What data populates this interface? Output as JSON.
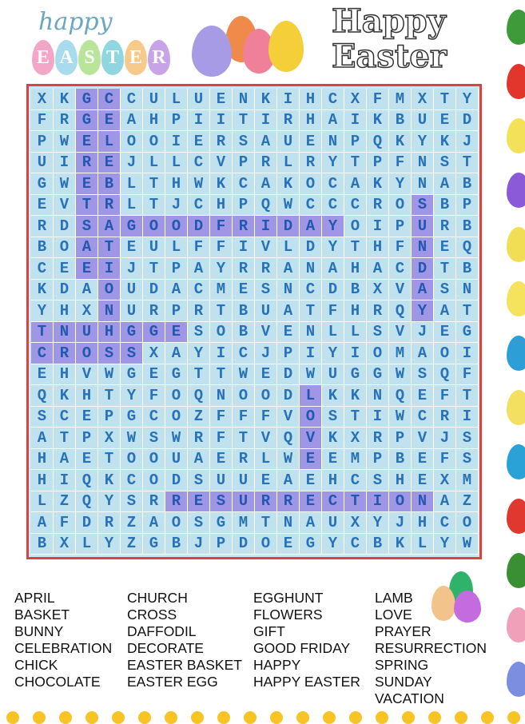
{
  "header": {
    "logo_left": {
      "script": "happy",
      "letters": [
        "E",
        "A",
        "S",
        "T",
        "E",
        "R"
      ],
      "egg_colors": [
        "#f4a6c9",
        "#a7dcee",
        "#b9e59a",
        "#8fd6e0",
        "#f7c98a",
        "#c9a3e8"
      ]
    },
    "logo_right": {
      "line1": "Happy",
      "line2": "Easter"
    }
  },
  "colors": {
    "border": "#e0403e",
    "cell_bg": "#bfe2ee",
    "highlight": "#9f97e6",
    "letter": "#2a72b8"
  },
  "grid": [
    "XKGCCULUENKIHCXFMXTY",
    "FRGEAHPIITIRHAIKBUED",
    "PWELOOIERSAUENPQKYKJ",
    "UIREJLLCVPRLRYTPFNST",
    "GWEBLTHWKCAKOCAKYNAB",
    "EVTRLTJCHPQWCCCROSBP",
    "RDSAGOODFRIDAYOIPURB",
    "BOATEULFFIVLDYTHFNEQ",
    "CEEIJTPAYRRANAHACDTB",
    "KDAOUDACMESNCDBXVASN",
    "YHXNURPRTBUATFHRQYAT",
    "TNUHGGESOBVENLLSVJEG",
    "CROSSXAYICJPIYIOMAOI",
    "EHVWGEGTTWEDWUGGWSQF",
    "QKHTYFOQNOODLKKNQEFT",
    "SCEPGCOZFFFVOSTIWCRI",
    "ATPXWSWRFTVQVKXRPVJS",
    "HAETOOUAERLWEEMPBEFS",
    "HIQKCODSUUEAEHCSHEXM",
    "LZQYSRRESURRECTIONAZ",
    "AFDRZAOSGMTNAUXYJHCO",
    "BXLYZGBJPDOEGYCBKLYW"
  ],
  "found_words": [
    {
      "word": "CELEBRATION",
      "row": 0,
      "col": 3,
      "direction": "down"
    },
    {
      "word": "EASTEREGG",
      "row": 8,
      "col": 2,
      "direction": "up"
    },
    {
      "word": "GOODFRIDAY",
      "row": 6,
      "col": 4,
      "direction": "right"
    },
    {
      "word": "SUNDAY",
      "row": 5,
      "col": 17,
      "direction": "down"
    },
    {
      "word": "EGGHUNT",
      "row": 11,
      "col": 6,
      "direction": "left"
    },
    {
      "word": "CROSS",
      "row": 12,
      "col": 0,
      "direction": "right"
    },
    {
      "word": "LOVE",
      "row": 14,
      "col": 12,
      "direction": "down"
    },
    {
      "word": "RESURRECTION",
      "row": 19,
      "col": 6,
      "direction": "right"
    }
  ],
  "word_list": [
    [
      "APRIL",
      "BASKET",
      "BUNNY",
      "CELEBRATION",
      "CHICK",
      "CHOCOLATE"
    ],
    [
      "CHURCH",
      "CROSS",
      "DAFFODIL",
      "DECORATE",
      "EASTER BASKET",
      "EASTER EGG"
    ],
    [
      "EGGHUNT",
      "FLOWERS",
      "GIFT",
      "GOOD FRIDAY",
      "HAPPY",
      "HAPPY EASTER"
    ],
    [
      "LAMB",
      "LOVE",
      "PRAYER",
      "RESURRECTION",
      "SPRING",
      "SUNDAY",
      "VACATION"
    ]
  ],
  "edge_egg_colors": [
    "#3f9a3a",
    "#e2352b",
    "#f4e15a",
    "#8a5ad8",
    "#f2de55",
    "#f5e35e",
    "#2e9fd6",
    "#f3e060",
    "#2aa2d8",
    "#e0382e",
    "#3a8f35",
    "#f0a0b8",
    "#7c8ee0"
  ]
}
